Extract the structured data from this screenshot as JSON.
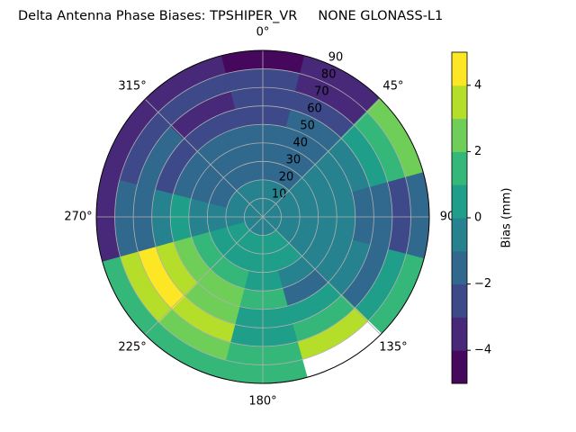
{
  "chart_data": {
    "type": "polar-contour",
    "title": "Delta Antenna Phase Biases: TPSHIPER_VR     NONE GLONASS-L1",
    "theta": [
      0,
      30,
      60,
      90,
      120,
      150,
      180,
      210,
      240,
      270,
      300,
      330
    ],
    "r": [
      5,
      15,
      25,
      35,
      45,
      55,
      65,
      75,
      85
    ],
    "z": [
      [
        -0.5,
        -0.5,
        -0.5,
        -0.5,
        -0.5,
        -0.5,
        -0.5,
        -0.5,
        -0.5,
        -0.5,
        -0.5,
        -0.5
      ],
      [
        -0.5,
        -0.5,
        -0.5,
        -0.5,
        -0.5,
        0.5,
        0.5,
        0.5,
        0.5,
        -0.5,
        -0.5,
        -0.5
      ],
      [
        -1.5,
        -1.5,
        -0.5,
        -0.5,
        -0.5,
        0.5,
        0.5,
        0.5,
        0.5,
        -0.5,
        -1.5,
        -1.5
      ],
      [
        -1.5,
        -1.5,
        -0.5,
        -0.5,
        -0.5,
        -0.5,
        0.5,
        1.5,
        1.5,
        -0.5,
        -1.5,
        -1.5
      ],
      [
        -1.5,
        -1.5,
        -0.5,
        -0.5,
        -0.5,
        -1.5,
        1.5,
        2.5,
        2.5,
        0.5,
        -1.5,
        -1.5
      ],
      [
        -2.5,
        -1.5,
        -0.5,
        -1.5,
        -0.5,
        0.5,
        0.5,
        2.5,
        3.5,
        -0.5,
        -2.5,
        -2.5
      ],
      [
        -2.5,
        -2.5,
        0.5,
        -1.5,
        -1.5,
        1.5,
        0.5,
        3.5,
        4.5,
        -1.5,
        -1.5,
        -3.5
      ],
      [
        -2.5,
        -3.5,
        1.5,
        -2.5,
        0.5,
        3.5,
        1.5,
        2.5,
        3.5,
        -1.5,
        -2.5,
        -2.5
      ],
      [
        -4.5,
        -3.5,
        2.5,
        -1.5,
        1.5,
        5.5,
        1.5,
        1.5,
        1.5,
        -3.5,
        -3.5,
        -3.5
      ]
    ],
    "levels": [
      -5,
      -4,
      -3,
      -2,
      -1,
      0,
      1,
      2,
      3,
      4,
      5
    ],
    "colors": [
      "#46085c",
      "#482878",
      "#3e4989",
      "#31688e",
      "#26828e",
      "#1f9e89",
      "#35b779",
      "#6ece58",
      "#b5de2b",
      "#fde725"
    ],
    "over_color": "#ffffff",
    "rlim": [
      0,
      90
    ],
    "rticks": [
      10,
      20,
      30,
      40,
      50,
      60,
      70,
      80,
      90
    ],
    "thetaticks": [
      {
        "value": 0,
        "label": "0°"
      },
      {
        "value": 45,
        "label": "45°"
      },
      {
        "value": 90,
        "label": "90"
      },
      {
        "value": 135,
        "label": "135°"
      },
      {
        "value": 180,
        "label": "180°"
      },
      {
        "value": 225,
        "label": "225°"
      },
      {
        "value": 270,
        "label": "270°"
      },
      {
        "value": 315,
        "label": "315°"
      }
    ],
    "colorbar_label": "Bias (mm)",
    "colorbar_ticks": [
      {
        "value": -4,
        "label": "−4"
      },
      {
        "value": -2,
        "label": "−2"
      },
      {
        "value": 0,
        "label": "0"
      },
      {
        "value": 2,
        "label": "2"
      },
      {
        "value": 4,
        "label": "4"
      }
    ],
    "grid": true
  }
}
